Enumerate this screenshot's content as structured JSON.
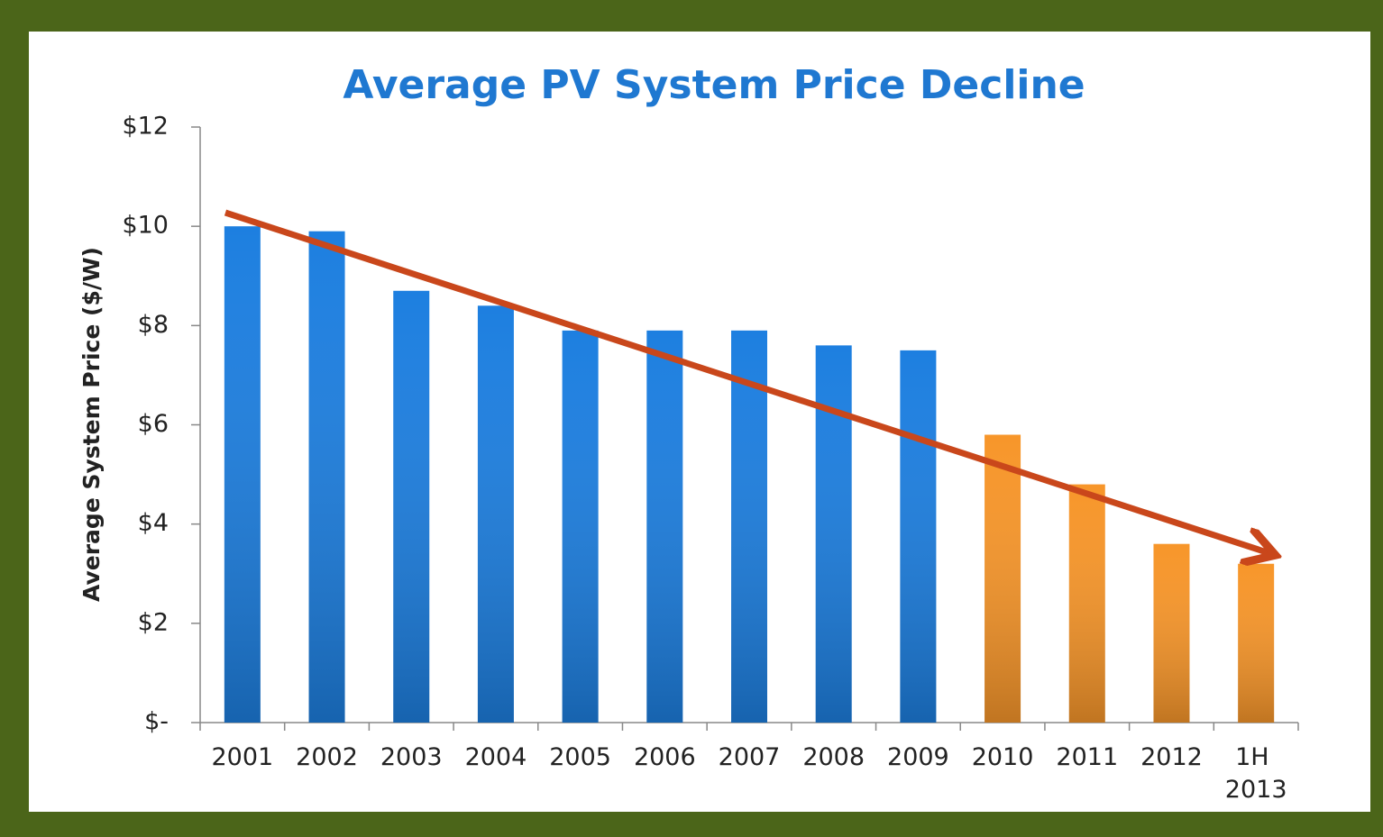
{
  "chart_data": {
    "type": "bar",
    "title": "Average PV System Price Decline",
    "y_label": "Average System Price ($/W)",
    "categories": [
      "2001",
      "2002",
      "2003",
      "2004",
      "2005",
      "2006",
      "2007",
      "2008",
      "2009",
      "2010",
      "2011",
      "2012",
      "1H 2013"
    ],
    "values": [
      10.0,
      9.9,
      8.7,
      8.4,
      7.9,
      7.9,
      7.9,
      7.6,
      7.5,
      5.8,
      4.8,
      3.6,
      3.2
    ],
    "colors": [
      "#1d7fe0",
      "#1d7fe0",
      "#1d7fe0",
      "#1d7fe0",
      "#1d7fe0",
      "#1d7fe0",
      "#1d7fe0",
      "#1d7fe0",
      "#1d7fe0",
      "#f7962a",
      "#f7962a",
      "#f7962a",
      "#f7962a"
    ],
    "ylim": [
      0,
      12
    ],
    "yticks": [
      {
        "value": 0,
        "label": "$-"
      },
      {
        "value": 2,
        "label": "$2"
      },
      {
        "value": 4,
        "label": "$4"
      },
      {
        "value": 6,
        "label": "$6"
      },
      {
        "value": 8,
        "label": "$8"
      },
      {
        "value": 10,
        "label": "$10"
      },
      {
        "value": 12,
        "label": "$12"
      }
    ],
    "grid": false
  }
}
